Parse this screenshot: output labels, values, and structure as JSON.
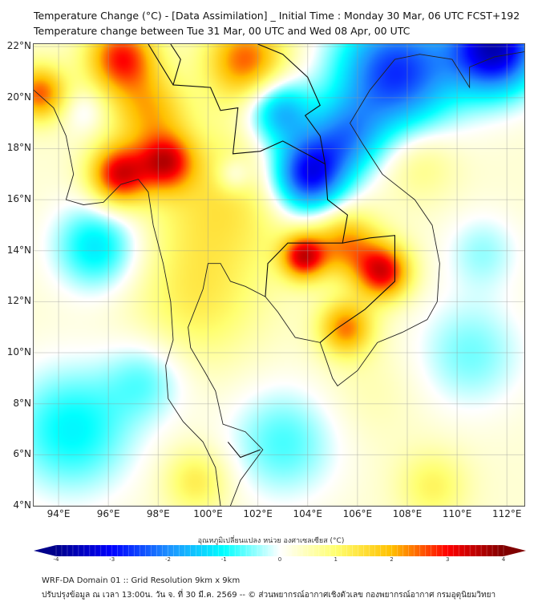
{
  "header": {
    "title_line1": "Temperature Change (°C) - [Data Assimilation] _ Initial Time : Monday 30 Mar, 06 UTC FCST+192",
    "title_line2": "Temperature change between Tue 31 Mar, 00 UTC and Wed 08 Apr, 00 UTC"
  },
  "map": {
    "lon_range": [
      93,
      112.7
    ],
    "lat_range": [
      4,
      22.1
    ],
    "lat_labels": [
      "22°N",
      "20°N",
      "18°N",
      "16°N",
      "14°N",
      "12°N",
      "10°N",
      "8°N",
      "6°N",
      "4°N"
    ],
    "lat_values": [
      22,
      20,
      18,
      16,
      14,
      12,
      10,
      8,
      6,
      4
    ],
    "lon_labels": [
      "94°E",
      "96°E",
      "98°E",
      "100°E",
      "102°E",
      "104°E",
      "106°E",
      "108°E",
      "110°E",
      "112°E"
    ],
    "lon_values": [
      94,
      96,
      98,
      100,
      102,
      104,
      106,
      108,
      110,
      112
    ],
    "field_samples": [
      {
        "lon": 96.5,
        "lat": 21.6,
        "value": 3.0,
        "spread": 1.4
      },
      {
        "lon": 101.5,
        "lat": 21.5,
        "value": 2.6,
        "spread": 1.6
      },
      {
        "lon": 93.2,
        "lat": 20.2,
        "value": 2.6,
        "spread": 1.1
      },
      {
        "lon": 96.4,
        "lat": 17.0,
        "value": 3.3,
        "spread": 1.2
      },
      {
        "lon": 98.3,
        "lat": 17.5,
        "value": 2.8,
        "spread": 1.1
      },
      {
        "lon": 97.6,
        "lat": 19.5,
        "value": 1.8,
        "spread": 1.5
      },
      {
        "lon": 100.5,
        "lat": 16.0,
        "value": 1.3,
        "spread": 3.0
      },
      {
        "lon": 99.5,
        "lat": 12.0,
        "value": 1.0,
        "spread": 2.5
      },
      {
        "lon": 95.0,
        "lat": 19.5,
        "value": -0.6,
        "spread": 0.8
      },
      {
        "lon": 104.0,
        "lat": 17.0,
        "value": -4.0,
        "spread": 1.5
      },
      {
        "lon": 102.8,
        "lat": 19.5,
        "value": -2.4,
        "spread": 1.3
      },
      {
        "lon": 107.5,
        "lat": 21.0,
        "value": -3.5,
        "spread": 2.4
      },
      {
        "lon": 111.5,
        "lat": 22.0,
        "value": -4.5,
        "spread": 1.8
      },
      {
        "lon": 105.5,
        "lat": 18.5,
        "value": -2.0,
        "spread": 1.5
      },
      {
        "lon": 101.0,
        "lat": 17.0,
        "value": -1.0,
        "spread": 0.7
      },
      {
        "lon": 95.5,
        "lat": 14.2,
        "value": -1.8,
        "spread": 1.7
      },
      {
        "lon": 103.8,
        "lat": 13.8,
        "value": 3.2,
        "spread": 0.9
      },
      {
        "lon": 105.5,
        "lat": 14.3,
        "value": 2.2,
        "spread": 1.3
      },
      {
        "lon": 107.0,
        "lat": 13.2,
        "value": 3.3,
        "spread": 1.1
      },
      {
        "lon": 105.5,
        "lat": 11.0,
        "value": 2.4,
        "spread": 1.1
      },
      {
        "lon": 94.5,
        "lat": 7.0,
        "value": -1.6,
        "spread": 2.5
      },
      {
        "lon": 97.5,
        "lat": 9.0,
        "value": -1.0,
        "spread": 1.6
      },
      {
        "lon": 103.0,
        "lat": 6.5,
        "value": -1.2,
        "spread": 2.2
      },
      {
        "lon": 110.5,
        "lat": 10.0,
        "value": -1.0,
        "spread": 2.2
      },
      {
        "lon": 111.0,
        "lat": 14.0,
        "value": -0.8,
        "spread": 1.5
      },
      {
        "lon": 108.5,
        "lat": 17.5,
        "value": 0.8,
        "spread": 1.5
      },
      {
        "lon": 99.5,
        "lat": 5.0,
        "value": 1.2,
        "spread": 1.3
      },
      {
        "lon": 109.0,
        "lat": 4.8,
        "value": 1.0,
        "spread": 1.4
      },
      {
        "lon": 106.5,
        "lat": 8.5,
        "value": 0.3,
        "spread": 2.0
      }
    ]
  },
  "colorbar": {
    "title": "อุณหภูมิเปลี่ยนแปลง หน่วย องศาเซลเซียส (°C)",
    "ticks": [
      "-4",
      "-3",
      "-2",
      "-1",
      "0",
      "1",
      "2",
      "3",
      "4"
    ],
    "min": -4,
    "max": 4,
    "colors": [
      "#00008b",
      "#0000ff",
      "#1e90ff",
      "#00ffff",
      "#ffffff",
      "#ffff70",
      "#ffc000",
      "#ff0000",
      "#800000"
    ]
  },
  "footer": {
    "line1": "WRF-DA Domain 01 :: Grid Resolution 9km x 9km",
    "line2": "ปรับปรุงข้อมูล ณ เวลา 13:00น. วัน จ. ที่ 30 มี.ค. 2569 -- © ส่วนพยากรณ์อากาศเชิงตัวเลข กองพยากรณ์อากาศ กรมอุตุนิยมวิทยา"
  }
}
